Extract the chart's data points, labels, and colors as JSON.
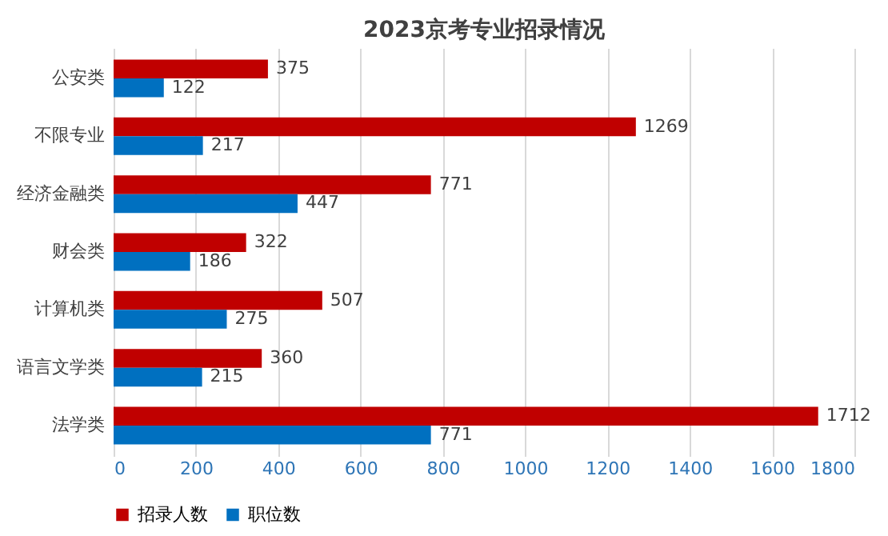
{
  "chart_data": {
    "type": "bar",
    "orientation": "horizontal",
    "title": "2023京考专业招录情况",
    "categories": [
      "公安类",
      "不限专业",
      "经济金融类",
      "财会类",
      "计算机类",
      "语言文学类",
      "法学类"
    ],
    "series": [
      {
        "name": "招录人数",
        "color": "#c00000",
        "values": [
          375,
          1269,
          771,
          322,
          507,
          360,
          1712
        ]
      },
      {
        "name": "职位数",
        "color": "#0070c0",
        "values": [
          122,
          217,
          447,
          186,
          275,
          215,
          771
        ]
      }
    ],
    "xlim": [
      0,
      1800
    ],
    "xticks": [
      0,
      200,
      400,
      600,
      800,
      1000,
      1200,
      1400,
      1600,
      1800
    ],
    "grid": "x",
    "legend": "bottom",
    "data_labels": true
  }
}
